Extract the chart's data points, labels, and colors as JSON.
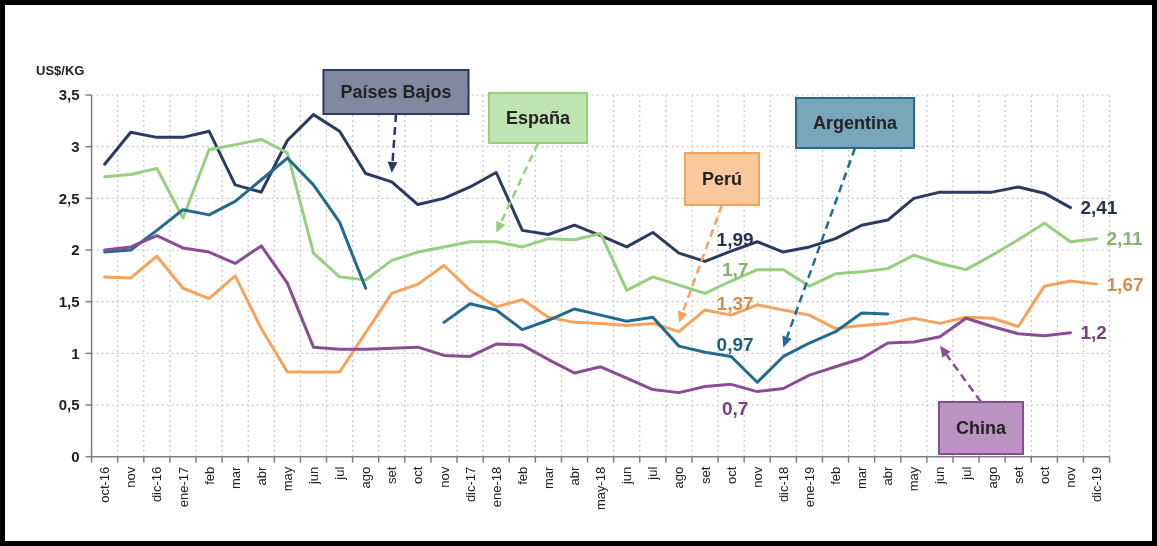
{
  "chart_data": {
    "type": "line",
    "ylabel": "US$/KG",
    "categories": [
      "oct-16",
      "nov",
      "dic-16",
      "ene-17",
      "feb",
      "mar",
      "abr",
      "may",
      "jun",
      "jul",
      "ago",
      "set",
      "oct",
      "nov",
      "dic-17",
      "ene-18",
      "feb",
      "mar",
      "abr",
      "may-18",
      "jun",
      "jul",
      "ago",
      "set",
      "oct",
      "nov",
      "dic-18",
      "ene-19",
      "feb",
      "mar",
      "abr",
      "may",
      "jun",
      "jul",
      "ago",
      "set",
      "oct",
      "nov",
      "dic-19"
    ],
    "ylim": [
      0,
      3.5
    ],
    "yticks": [
      0,
      {
        "value": 0.5,
        "label": "0,5"
      },
      1,
      {
        "value": 1.5,
        "label": "1,5"
      },
      2,
      {
        "value": 2.5,
        "label": "2,5"
      },
      3,
      {
        "value": 3.5,
        "label": "3,5"
      }
    ],
    "grid": true,
    "series": [
      {
        "name": "Países Bajos",
        "color": "#2b3a60",
        "values": [
          2.83,
          3.14,
          3.09,
          3.09,
          3.15,
          2.63,
          2.56,
          3.06,
          3.31,
          3.15,
          2.74,
          2.66,
          2.44,
          2.5,
          2.61,
          2.75,
          2.19,
          2.15,
          2.24,
          2.14,
          2.03,
          2.17,
          1.97,
          1.89,
          1.99,
          2.08,
          1.98,
          2.03,
          2.11,
          2.24,
          2.29,
          2.5,
          2.56,
          2.56,
          2.56,
          2.61,
          2.55,
          2.41,
          null
        ],
        "value_labels": [
          null,
          null,
          null,
          null,
          null,
          null,
          null,
          null,
          null,
          null,
          null,
          null,
          null,
          null,
          null,
          null,
          null,
          null,
          null,
          null,
          null,
          null,
          null,
          null,
          "1,99",
          null,
          null,
          null,
          null,
          null,
          null,
          null,
          null,
          null,
          null,
          null,
          null,
          "2,41",
          null
        ]
      },
      {
        "name": "España",
        "color": "#96d07e",
        "values": [
          2.71,
          2.73,
          2.79,
          2.31,
          2.97,
          3.02,
          3.07,
          2.94,
          1.97,
          1.74,
          1.71,
          1.9,
          1.98,
          2.03,
          2.08,
          2.08,
          2.03,
          2.11,
          2.1,
          2.16,
          1.61,
          1.74,
          1.66,
          1.58,
          1.7,
          1.81,
          1.81,
          1.65,
          1.77,
          1.79,
          1.82,
          1.95,
          1.87,
          1.81,
          1.95,
          2.1,
          2.26,
          2.08,
          2.11
        ],
        "value_labels": [
          null,
          null,
          null,
          null,
          null,
          null,
          null,
          null,
          null,
          null,
          null,
          null,
          null,
          null,
          null,
          null,
          null,
          null,
          null,
          null,
          null,
          null,
          null,
          null,
          "1,7",
          null,
          null,
          null,
          null,
          null,
          null,
          null,
          null,
          null,
          null,
          null,
          null,
          null,
          "2,11"
        ]
      },
      {
        "name": "Perú",
        "color": "#f5a35c",
        "values": [
          1.74,
          1.73,
          1.94,
          1.63,
          1.53,
          1.75,
          1.24,
          0.82,
          0.82,
          0.82,
          1.2,
          1.58,
          1.67,
          1.85,
          1.61,
          1.45,
          1.52,
          1.35,
          1.3,
          1.29,
          1.27,
          1.29,
          1.21,
          1.42,
          1.37,
          1.47,
          1.42,
          1.37,
          1.24,
          1.27,
          1.29,
          1.34,
          1.29,
          1.35,
          1.34,
          1.26,
          1.65,
          1.7,
          1.67
        ],
        "value_labels": [
          null,
          null,
          null,
          null,
          null,
          null,
          null,
          null,
          null,
          null,
          null,
          null,
          null,
          null,
          null,
          null,
          null,
          null,
          null,
          null,
          null,
          null,
          null,
          null,
          "1,37",
          null,
          null,
          null,
          null,
          null,
          null,
          null,
          null,
          null,
          null,
          null,
          null,
          null,
          "1,67"
        ]
      },
      {
        "name": "Argentina",
        "color": "#226b8f",
        "values": [
          1.98,
          2.0,
          2.19,
          2.39,
          2.34,
          2.47,
          2.68,
          2.89,
          2.63,
          2.27,
          1.63,
          null,
          null,
          1.3,
          1.48,
          1.42,
          1.23,
          1.32,
          1.43,
          1.37,
          1.31,
          1.35,
          1.07,
          1.01,
          0.97,
          0.72,
          0.97,
          1.1,
          1.21,
          1.39,
          1.38,
          null,
          null,
          null,
          null,
          null,
          null,
          null,
          null
        ],
        "value_labels": [
          null,
          null,
          null,
          null,
          null,
          null,
          null,
          null,
          null,
          null,
          null,
          null,
          null,
          null,
          null,
          null,
          null,
          null,
          null,
          null,
          null,
          null,
          null,
          null,
          "0,97",
          null,
          null,
          null,
          null,
          null,
          null,
          null,
          null,
          null,
          null,
          null,
          null,
          null,
          null
        ]
      },
      {
        "name": "China",
        "color": "#8c4b96",
        "values": [
          2.0,
          2.03,
          2.14,
          2.02,
          1.98,
          1.87,
          2.04,
          1.68,
          1.06,
          1.04,
          1.04,
          1.05,
          1.06,
          0.98,
          0.97,
          1.09,
          1.08,
          0.94,
          0.81,
          0.87,
          0.76,
          0.65,
          0.62,
          0.68,
          0.7,
          0.63,
          0.66,
          0.79,
          0.87,
          0.95,
          1.1,
          1.11,
          1.16,
          1.34,
          1.26,
          1.19,
          1.17,
          1.2,
          null
        ],
        "value_labels": [
          null,
          null,
          null,
          null,
          null,
          null,
          null,
          null,
          null,
          null,
          null,
          null,
          null,
          null,
          null,
          null,
          null,
          null,
          null,
          null,
          null,
          null,
          null,
          null,
          "0,7",
          null,
          null,
          null,
          null,
          null,
          null,
          null,
          null,
          null,
          null,
          null,
          null,
          "1,2",
          null
        ]
      }
    ]
  }
}
